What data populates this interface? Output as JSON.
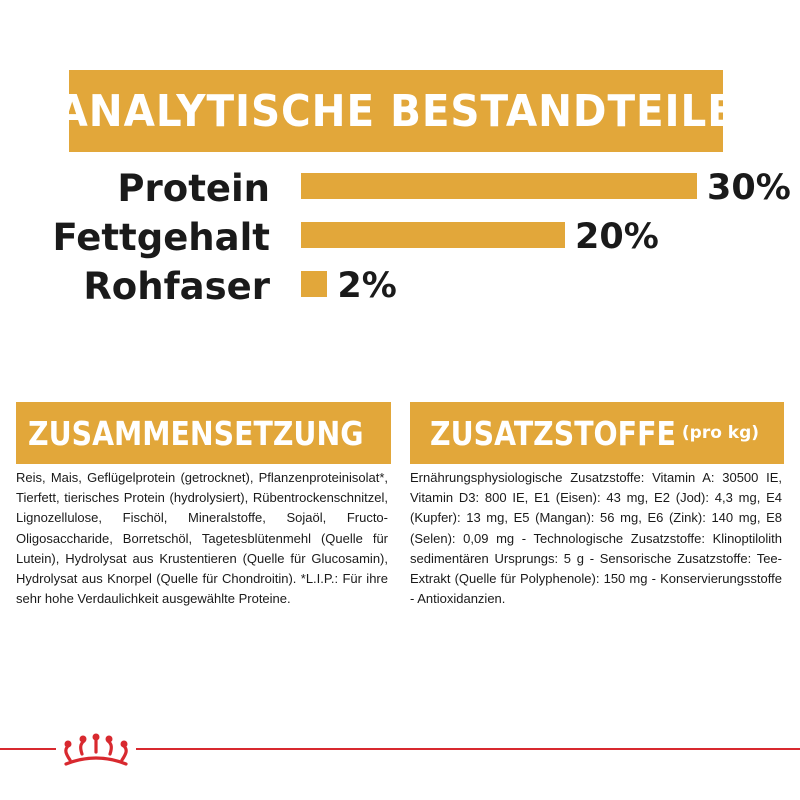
{
  "header": {
    "title": "ANALYTISCHE BESTANDTEILE"
  },
  "chart_data": {
    "type": "bar",
    "orientation": "horizontal",
    "categories": [
      "Protein",
      "Fettgehalt",
      "Rohfaser"
    ],
    "values": [
      30,
      20,
      2
    ],
    "value_labels": [
      "30%",
      "20%",
      "2%"
    ],
    "unit": "%",
    "xlim": [
      0,
      30
    ],
    "grid": false,
    "bar_color": "#e2a73a"
  },
  "composition": {
    "title": "ZUSAMMENSETZUNG",
    "text": "Reis, Mais, Geflügelprotein (getrocknet), Pflanzenproteinisolat*, Tierfett, tierisches Protein (hydrolysiert), Rübentrockenschnitzel, Lignozellulose, Fischöl, Mineralstoffe, Sojaöl, Fructo-Oligosaccharide, Borretschöl, Tagetesblütenmehl (Quelle für Lutein), Hydrolysat aus Krustentieren (Quelle für Glucosamin), Hydrolysat aus Knorpel (Quelle für Chondroitin). *L.I.P.: Für ihre sehr hohe Verdaulichkeit ausgewählte Proteine."
  },
  "additives": {
    "title": "ZUSATZSTOFFE",
    "subtitle": "(pro kg)",
    "text": "Ernährungsphysiologische Zusatzstoffe: Vitamin A: 30500 IE, Vitamin D3: 800 IE, E1 (Eisen): 43 mg, E2 (Jod): 4,3 mg, E4 (Kupfer): 13 mg, E5 (Mangan): 56 mg, E6 (Zink): 140 mg, E8 (Selen): 0,09 mg - Technologische Zusatzstoffe: Klinoptilolith sedimentären Ursprungs: 5 g - Sensorische Zusatzstoffe: Tee-Extrakt (Quelle für Polyphenole): 150 mg - Konservierungsstoffe - Antioxidanzien."
  },
  "colors": {
    "accent": "#e2a73a",
    "brand_red": "#d8292f"
  },
  "footer": {
    "logo_icon": "crown-icon"
  }
}
